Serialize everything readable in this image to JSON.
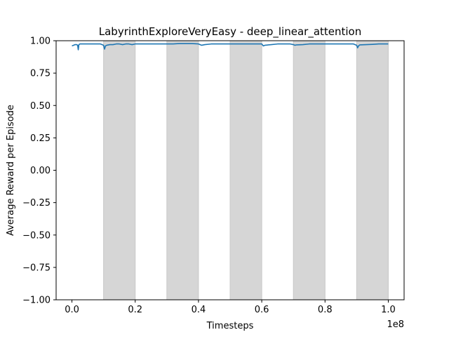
{
  "chart_data": {
    "type": "line",
    "title": "LabyrinthExploreVeryEasy - deep_linear_attention",
    "xlabel": "Timesteps",
    "ylabel": "Average Reward per Episode",
    "x_offset_label": "1e8",
    "xlim": [
      -0.05,
      1.05
    ],
    "ylim": [
      -1.0,
      1.0
    ],
    "x_ticks": [
      0.0,
      0.2,
      0.4,
      0.6,
      0.8,
      1.0
    ],
    "x_tick_labels": [
      "0.0",
      "0.2",
      "0.4",
      "0.6",
      "0.8",
      "1.0"
    ],
    "y_ticks": [
      -1.0,
      -0.75,
      -0.5,
      -0.25,
      0.0,
      0.25,
      0.5,
      0.75,
      1.0
    ],
    "y_tick_labels": [
      "−1.00",
      "−0.75",
      "−0.50",
      "−0.25",
      "0.00",
      "0.25",
      "0.50",
      "0.75",
      "1.00"
    ],
    "grid": false,
    "shaded_regions": [
      [
        0.1,
        0.2
      ],
      [
        0.3,
        0.4
      ],
      [
        0.5,
        0.6
      ],
      [
        0.7,
        0.8
      ],
      [
        0.9,
        1.0
      ]
    ],
    "series": [
      {
        "color": "#1f77b4",
        "x": [
          0.0,
          0.005,
          0.01,
          0.015,
          0.018,
          0.02,
          0.022,
          0.025,
          0.03,
          0.04,
          0.05,
          0.06,
          0.07,
          0.08,
          0.09,
          0.095,
          0.1,
          0.103,
          0.106,
          0.11,
          0.12,
          0.13,
          0.14,
          0.15,
          0.16,
          0.17,
          0.18,
          0.19,
          0.2,
          0.22,
          0.24,
          0.26,
          0.28,
          0.3,
          0.32,
          0.34,
          0.36,
          0.38,
          0.4,
          0.41,
          0.42,
          0.44,
          0.46,
          0.48,
          0.5,
          0.52,
          0.54,
          0.56,
          0.58,
          0.6,
          0.605,
          0.61,
          0.63,
          0.65,
          0.67,
          0.69,
          0.7,
          0.705,
          0.71,
          0.73,
          0.75,
          0.77,
          0.79,
          0.81,
          0.83,
          0.85,
          0.87,
          0.89,
          0.9,
          0.903,
          0.906,
          0.91,
          0.93,
          0.95,
          0.97,
          0.99,
          1.0
        ],
        "y": [
          0.96,
          0.965,
          0.97,
          0.97,
          0.965,
          0.93,
          0.97,
          0.975,
          0.975,
          0.975,
          0.975,
          0.975,
          0.975,
          0.975,
          0.975,
          0.97,
          0.965,
          0.935,
          0.96,
          0.965,
          0.97,
          0.97,
          0.975,
          0.975,
          0.97,
          0.975,
          0.975,
          0.97,
          0.975,
          0.975,
          0.975,
          0.975,
          0.975,
          0.975,
          0.975,
          0.978,
          0.978,
          0.978,
          0.975,
          0.965,
          0.97,
          0.975,
          0.975,
          0.975,
          0.975,
          0.975,
          0.975,
          0.975,
          0.975,
          0.975,
          0.96,
          0.965,
          0.97,
          0.975,
          0.975,
          0.975,
          0.97,
          0.965,
          0.968,
          0.97,
          0.975,
          0.975,
          0.975,
          0.975,
          0.975,
          0.975,
          0.975,
          0.975,
          0.965,
          0.945,
          0.96,
          0.968,
          0.97,
          0.972,
          0.975,
          0.975,
          0.975
        ]
      }
    ]
  }
}
